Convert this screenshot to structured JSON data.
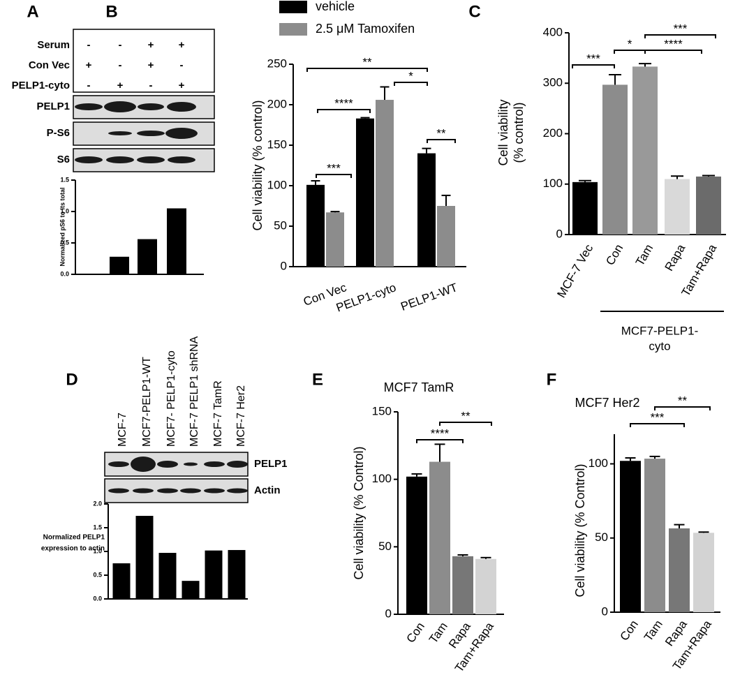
{
  "chart_data": [
    {
      "type": "bar",
      "label": "A",
      "blot": {
        "conditions": [
          {
            "label": "Serum",
            "signs": [
              "-",
              "-",
              "+",
              "+"
            ]
          },
          {
            "label": "Con Vec",
            "signs": [
              "+",
              "-",
              "+",
              "-"
            ]
          },
          {
            "label": "PELP1-cyto",
            "signs": [
              "-",
              "+",
              "-",
              "+"
            ]
          }
        ],
        "bands": [
          "PELP1",
          "P-S6",
          "S6"
        ]
      },
      "ylabel": "Normalized pS6 to its total",
      "categories": [
        null,
        null,
        null,
        null
      ],
      "values": [
        0,
        0.28,
        0.56,
        1.05
      ],
      "color": "#000000",
      "ylim": [
        0,
        1.5
      ],
      "yticks": [
        {
          "value": 0,
          "label": "0.0"
        },
        {
          "value": 0.5,
          "label": "0.5"
        },
        {
          "value": 1,
          "label": "1.0"
        },
        {
          "value": 1.5,
          "label": "1.5"
        }
      ]
    },
    {
      "type": "bar",
      "label": "B",
      "ylabel": "Cell viability (% control)",
      "categories": [
        "Con Vec",
        "PELP1-cyto",
        "PELP1-WT"
      ],
      "series": [
        {
          "name": "vehicle",
          "color": "#000000",
          "values": [
            101,
            183,
            140
          ],
          "errors": [
            5,
            1,
            6
          ]
        },
        {
          "name": "2.5 μM Tamoxifen",
          "color": "#8c8c8c",
          "values": [
            67,
            206,
            75
          ],
          "errors": [
            1,
            16,
            13
          ]
        }
      ],
      "ylim": [
        0,
        250
      ],
      "yticks": [
        0,
        50,
        100,
        150,
        200,
        250
      ],
      "annotations": [
        "**",
        "****",
        "*",
        "***",
        "**"
      ]
    },
    {
      "type": "bar",
      "label": "C",
      "ylabel": [
        "Cell viability",
        "(% control)"
      ],
      "categories": [
        "MCF-7 Vec",
        "Con",
        "Tam",
        "Rapa",
        "Tam+Rapa"
      ],
      "values": [
        104,
        297,
        333,
        110,
        115
      ],
      "errors": [
        3,
        20,
        6,
        6,
        2
      ],
      "colors": [
        "#000000",
        "#8c8c8c",
        "#999999",
        "#d9d9d9",
        "#6b6b6b"
      ],
      "ylim": [
        0,
        400
      ],
      "yticks": [
        0,
        100,
        200,
        300,
        400
      ],
      "group_label": [
        "MCF7-PELP1-",
        "cyto"
      ],
      "annotations": [
        "***",
        "*",
        "****",
        "***"
      ]
    },
    {
      "type": "bar",
      "label": "D",
      "blot": {
        "lanes": [
          "MCF-7",
          "MCF7-PELP1-WT",
          "MCF7- PELP1-cyto",
          "MCF-7 PELP1 shRNA",
          "MCF-7 TamR",
          "MCF-7 Her2"
        ],
        "bands": [
          "PELP1",
          "Actin"
        ]
      },
      "ylabel": [
        "Normalized PELP1",
        "expression to actin"
      ],
      "categories": [
        null,
        null,
        null,
        null,
        null,
        null
      ],
      "values": [
        0.75,
        1.75,
        0.97,
        0.38,
        1.02,
        1.03
      ],
      "color": "#000000",
      "ylim": [
        0,
        2
      ],
      "yticks": [
        {
          "value": 0,
          "label": "0.0"
        },
        {
          "value": 0.5,
          "label": "0.5"
        },
        {
          "value": 1,
          "label": "1.0"
        },
        {
          "value": 1.5,
          "label": "1.5"
        },
        {
          "value": 2,
          "label": "2.0"
        }
      ]
    },
    {
      "type": "bar",
      "label": "E",
      "title": "MCF7 TamR",
      "ylabel": "Cell viability (% Control)",
      "categories": [
        "Con",
        "Tam",
        "Rapa",
        "Tam+Rapa"
      ],
      "values": [
        102,
        113,
        43,
        41
      ],
      "errors": [
        2,
        13,
        1,
        1
      ],
      "colors": [
        "#000000",
        "#8c8c8c",
        "#777777",
        "#d3d3d3"
      ],
      "ylim": [
        0,
        150
      ],
      "yticks": [
        0,
        50,
        100,
        150
      ],
      "annotations": [
        "****",
        "**"
      ]
    },
    {
      "type": "bar",
      "label": "F",
      "title": "MCF7 Her2",
      "ylabel": "Cell viability (% Control)",
      "categories": [
        "Con",
        "Tam",
        "Rapa",
        "Tam+Rapa"
      ],
      "values": [
        102,
        103.5,
        56.5,
        53.5
      ],
      "errors": [
        2,
        1.5,
        2.5,
        0.5
      ],
      "colors": [
        "#000000",
        "#8c8c8c",
        "#777777",
        "#d3d3d3"
      ],
      "ylim": [
        0,
        120
      ],
      "yticks": [
        0,
        50,
        100
      ],
      "annotations": [
        "***",
        "**"
      ]
    }
  ]
}
